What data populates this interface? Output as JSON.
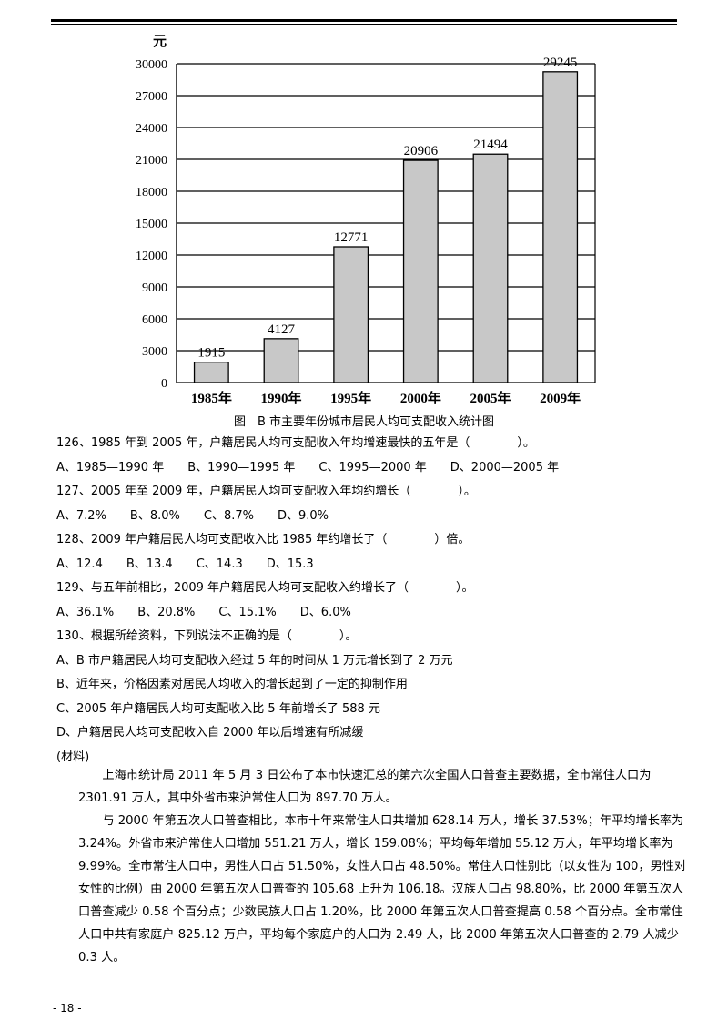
{
  "chart_data": {
    "type": "bar",
    "ylabel": "元",
    "ylim": [
      0,
      30000
    ],
    "yticks": [
      0,
      3000,
      6000,
      9000,
      12000,
      15000,
      18000,
      21000,
      24000,
      27000,
      30000
    ],
    "categories": [
      "1985年",
      "1990年",
      "1995年",
      "2000年",
      "2005年",
      "2009年"
    ],
    "values": [
      1915,
      4127,
      12771,
      20906,
      21494,
      29245
    ],
    "data_labels": [
      "1915",
      "4127",
      "12771",
      "20906",
      "21494",
      "29245"
    ],
    "grid": "horizontal",
    "bar_color": "#c8c8c8"
  },
  "caption": "图　B 市主要年份城市居民人均可支配收入统计图",
  "questions": {
    "q126": "126、1985 年到 2005 年，户籍居民人均可支配收入年均增速最快的五年是（　　　　）。",
    "q126_opts": "A、1985—1990 年　　B、1990—1995 年　　C、1995—2000 年　　D、2000—2005 年",
    "q127": "127、2005 年至 2009 年，户籍居民人均可支配收入年均约增长（　　　　）。",
    "q127_opts": "A、7.2%　　B、8.0%　　C、8.7%　　D、9.0%",
    "q128": "128、2009 年户籍居民人均可支配收入比 1985 年约增长了（　　　　）倍。",
    "q128_opts": "A、12.4　　B、13.4　　C、14.3　　D、15.3",
    "q129": "129、与五年前相比，2009 年户籍居民人均可支配收入约增长了（　　　　）。",
    "q129_opts": "A、36.1%　　B、20.8%　　C、15.1%　　D、6.0%",
    "q130": "130、根据所给资料，下列说法不正确的是（　　　　）。",
    "q130_a": "A、B 市户籍居民人均可支配收入经过 5 年的时间从 1 万元增长到了 2 万元",
    "q130_b": "B、近年来，价格因素对居民人均收入的增长起到了一定的抑制作用",
    "q130_c": "C、2005 年户籍居民人均可支配收入比 5 年前增长了 588 元",
    "q130_d": "D、户籍居民人均可支配收入自 2000 年以后增速有所减缓"
  },
  "material_label": "(材料)",
  "material": {
    "p1": "上海市统计局 2011 年 5 月 3 日公布了本市快速汇总的第六次全国人口普查主要数据，全市常住人口为 2301.91 万人，其中外省市来沪常住人口为 897.70 万人。",
    "p2": "与 2000 年第五次人口普查相比，本市十年来常住人口共增加 628.14 万人，增长 37.53%；年平均增长率为 3.24%。外省市来沪常住人口增加 551.21 万人，增长 159.08%；平均每年增加 55.12 万人，年平均增长率为 9.99%。全市常住人口中，男性人口占 51.50%，女性人口占 48.50%。常住人口性别比（以女性为 100，男性对女性的比例）由 2000 年第五次人口普查的 105.68 上升为 106.18。汉族人口占 98.80%，比 2000 年第五次人口普查减少 0.58 个百分点；少数民族人口占 1.20%，比 2000 年第五次人口普查提高 0.58 个百分点。全市常住人口中共有家庭户 825.12 万户，平均每个家庭户的人口为 2.49 人，比 2000 年第五次人口普查的 2.79 人减少 0.3 人。"
  },
  "page_number": "- 18 -"
}
